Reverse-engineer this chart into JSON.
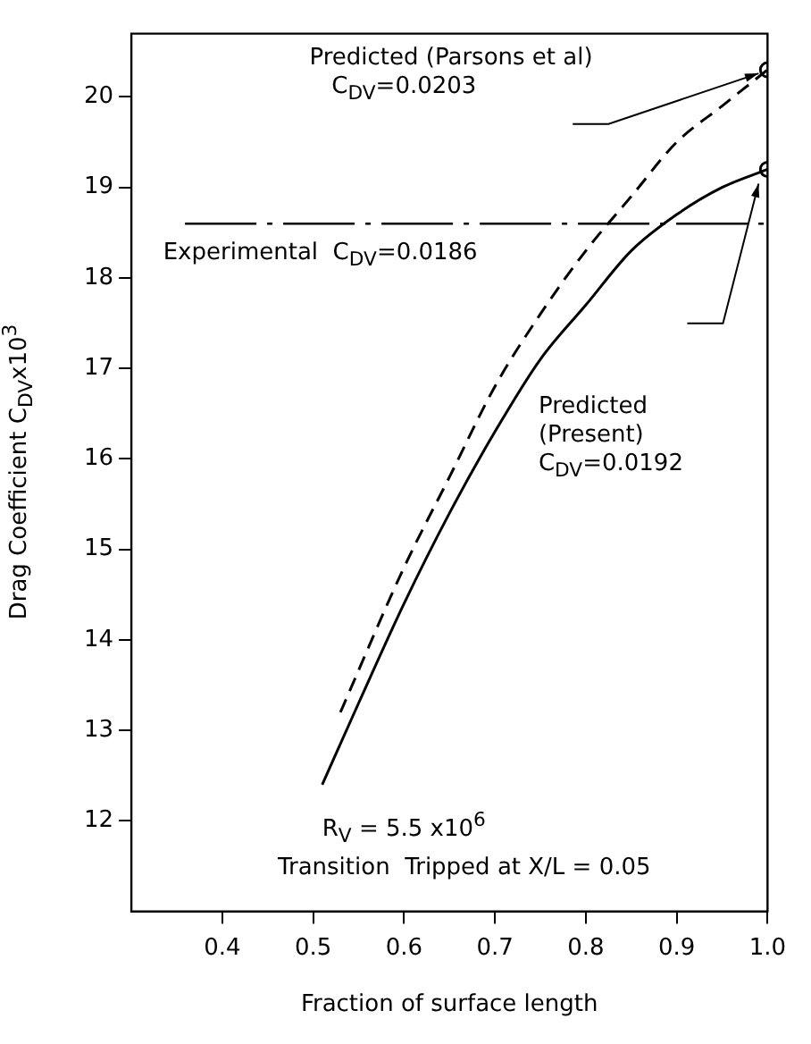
{
  "chart_data": {
    "type": "line",
    "xlabel": "Fraction of surface length",
    "ylabel": "Drag Coefficient C$_{DV}$x10$^{3}$",
    "xlim": [
      0.3,
      1.0
    ],
    "xticks": [
      0.4,
      0.5,
      0.6,
      0.7,
      0.8,
      0.9,
      {
        "value": 1.0,
        "label": "1.0"
      }
    ],
    "ylim": [
      11.0,
      20.7
    ],
    "yticks": [
      12,
      13,
      14,
      15,
      16,
      17,
      18,
      19,
      20
    ],
    "grid": false,
    "legend": false,
    "series": [
      {
        "color": "#000000",
        "line_style": "solid",
        "marker": "none",
        "x": [
          0.51,
          0.55,
          0.6,
          0.65,
          0.7,
          0.75,
          0.8,
          0.85,
          0.9,
          0.95,
          1.0
        ],
        "values": [
          12.4,
          13.3,
          14.4,
          15.4,
          16.3,
          17.1,
          17.7,
          18.3,
          18.7,
          19.0,
          19.2
        ]
      },
      {
        "color": "#000000",
        "line_style": "dashed",
        "marker": "none",
        "x": [
          0.53,
          0.6,
          0.65,
          0.7,
          0.75,
          0.8,
          0.85,
          0.9,
          0.95,
          1.0
        ],
        "values": [
          13.2,
          14.8,
          15.8,
          16.8,
          17.6,
          18.3,
          18.9,
          19.5,
          19.9,
          20.3
        ]
      },
      {
        "type": "scatter",
        "color": "#000000",
        "marker": "circle",
        "x": [
          1.0,
          1.0
        ],
        "values": [
          20.3,
          19.2
        ]
      }
    ],
    "ref_lines": [
      {
        "axis": "y",
        "value": 18.6,
        "line_style": "dashdot"
      }
    ],
    "annotations": [
      "Predicted (Parsons et al)\n   C$_{DV}$=0.0203",
      "Predicted\n(Present)\nC$_{DV}$=0.0192",
      "Experimental  C$_{DV}$=0.0186",
      "R$_{V}$ = 5.5 x10$^{6}$",
      "Transition  Tripped at X/L = 0.05"
    ]
  }
}
